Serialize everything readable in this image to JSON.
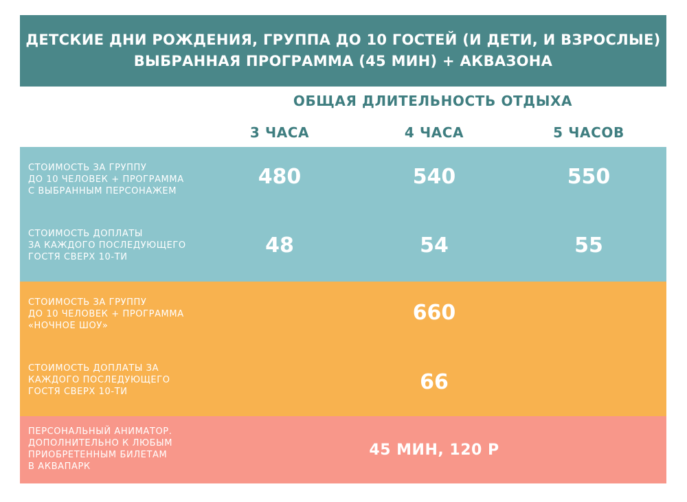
{
  "header": {
    "line1": "ДЕТСКИЕ ДНИ РОЖДЕНИЯ, ГРУППА ДО 10 ГОСТЕЙ (И ДЕТИ, И ВЗРОСЛЫЕ)",
    "line2": "ВЫБРАННАЯ ПРОГРАММА (45 МИН) + АКВАЗОНА"
  },
  "subheader": "ОБЩАЯ ДЛИТЕЛЬНОСТЬ ОТДЫХА",
  "columns": [
    "3 ЧАСА",
    "4 ЧАСА",
    "5 ЧАСОВ"
  ],
  "rows": [
    {
      "label": [
        "СТОИМОСТЬ ЗА ГРУППУ",
        "ДО 10 ЧЕЛОВЕК + ПРОГРАММА",
        "С ВЫБРАННЫМ ПЕРСОНАЖЕМ"
      ],
      "values": [
        "480",
        "540",
        "550"
      ]
    },
    {
      "label": [
        "СТОИМОСТЬ ДОПЛАТЫ",
        "ЗА КАЖДОГО ПОСЛЕДУЮЩЕГО",
        "ГОСТЯ СВЕРХ 10-ТИ"
      ],
      "values": [
        "48",
        "54",
        "55"
      ]
    },
    {
      "label": [
        "СТОИМОСТЬ ЗА ГРУППУ",
        "ДО 10 ЧЕЛОВЕК + ПРОГРАММА",
        "«НОЧНОЕ ШОУ»"
      ],
      "value": "660"
    },
    {
      "label": [
        "СТОИМОСТЬ ДОПЛАТЫ ЗА",
        "КАЖДОГО ПОСЛЕДУЮЩЕГО",
        "ГОСТЯ СВЕРХ 10-ТИ"
      ],
      "value": "66"
    },
    {
      "label": [
        "ПЕРСОНАЛЬНЫЙ АНИМАТОР.",
        "ДОПОЛНИТЕЛЬНО К ЛЮБЫМ",
        "ПРИОБРЕТЕННЫМ БИЛЕТАМ",
        "В АКВАПАРК"
      ],
      "value": "45 МИН, 120 Р"
    }
  ],
  "colors": {
    "header_bg": "#4a8789",
    "heading_text": "#3f7e80",
    "blue_band": "#8cc5cc",
    "orange_band": "#f8b24f",
    "pink_band": "#f8978a"
  }
}
